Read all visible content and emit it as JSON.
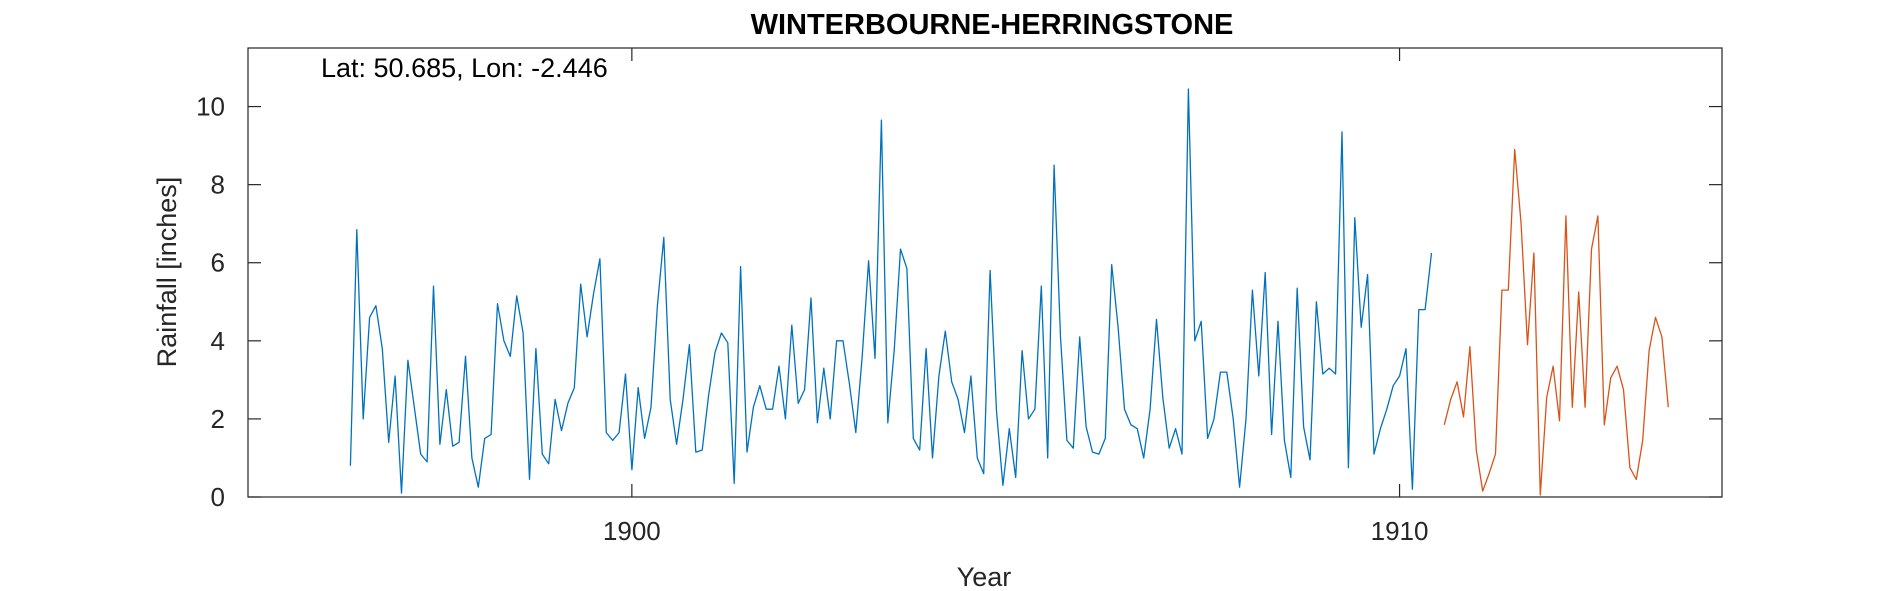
{
  "chart_data": {
    "type": "line",
    "title": "WINTERBOURNE-HERRINGSTONE",
    "xlabel": "Year",
    "ylabel": "Rainfall [inches]",
    "annotation": "Lat: 50.685, Lon: -2.446",
    "xlim": [
      1895.0,
      1914.2
    ],
    "ylim": [
      0,
      11.5
    ],
    "xticks": [
      1900,
      1910
    ],
    "yticks": [
      0,
      2,
      4,
      6,
      8,
      10
    ],
    "grid": false,
    "series": [
      {
        "color": "#0072BD",
        "x_start": 1896.3333,
        "x_step": 0.0833333,
        "values": [
          0.8,
          6.85,
          2.0,
          4.6,
          4.9,
          3.8,
          1.4,
          3.1,
          0.1,
          3.5,
          2.3,
          1.1,
          0.9,
          5.4,
          1.35,
          2.75,
          1.3,
          1.4,
          3.6,
          1.0,
          0.25,
          1.5,
          1.6,
          4.95,
          4.0,
          3.6,
          5.15,
          4.2,
          0.45,
          3.8,
          1.1,
          0.85,
          2.5,
          1.7,
          2.4,
          2.8,
          5.45,
          4.1,
          5.2,
          6.1,
          1.65,
          1.45,
          1.65,
          3.15,
          0.7,
          2.8,
          1.5,
          2.3,
          4.9,
          6.65,
          2.5,
          1.35,
          2.5,
          3.9,
          1.15,
          1.2,
          2.6,
          3.7,
          4.2,
          3.95,
          0.35,
          5.9,
          1.15,
          2.3,
          2.85,
          2.25,
          2.25,
          3.35,
          2.0,
          4.4,
          2.4,
          2.75,
          5.1,
          1.9,
          3.3,
          2.0,
          4.0,
          4.0,
          2.9,
          1.65,
          3.6,
          6.05,
          3.55,
          9.65,
          1.9,
          3.75,
          6.35,
          5.85,
          1.5,
          1.2,
          3.8,
          1.0,
          3.1,
          4.25,
          2.95,
          2.5,
          1.65,
          3.1,
          1.0,
          0.6,
          5.8,
          2.2,
          0.3,
          1.75,
          0.5,
          3.75,
          2.0,
          2.25,
          5.4,
          1.0,
          8.5,
          4.1,
          1.45,
          1.25,
          4.1,
          1.8,
          1.15,
          1.1,
          1.5,
          5.95,
          4.35,
          2.25,
          1.85,
          1.75,
          1.0,
          2.25,
          4.55,
          2.55,
          1.25,
          1.75,
          1.1,
          10.45,
          4.0,
          4.5,
          1.5,
          2.0,
          3.2,
          3.2,
          2.0,
          0.25,
          2.0,
          5.3,
          3.1,
          5.75,
          1.6,
          4.5,
          1.45,
          0.5,
          5.35,
          1.8,
          0.95,
          5.0,
          3.15,
          3.3,
          3.15,
          9.35,
          0.75,
          7.15,
          4.35,
          5.7,
          1.1,
          1.75,
          2.25,
          2.85,
          3.1,
          3.8,
          0.2,
          4.8,
          4.8,
          6.25
        ]
      },
      {
        "color": "#D95319",
        "x_start": 1910.5833,
        "x_step": 0.0833333,
        "values": [
          1.85,
          2.5,
          2.95,
          2.05,
          3.85,
          1.2,
          0.15,
          0.6,
          1.1,
          5.3,
          5.3,
          8.9,
          7.0,
          3.9,
          6.25,
          0.05,
          2.55,
          3.35,
          1.95,
          7.2,
          2.3,
          5.25,
          2.3,
          6.35,
          7.2,
          1.85,
          3.05,
          3.35,
          2.75,
          0.75,
          0.45,
          1.45,
          3.75,
          4.6,
          4.1,
          2.3
        ]
      }
    ]
  }
}
